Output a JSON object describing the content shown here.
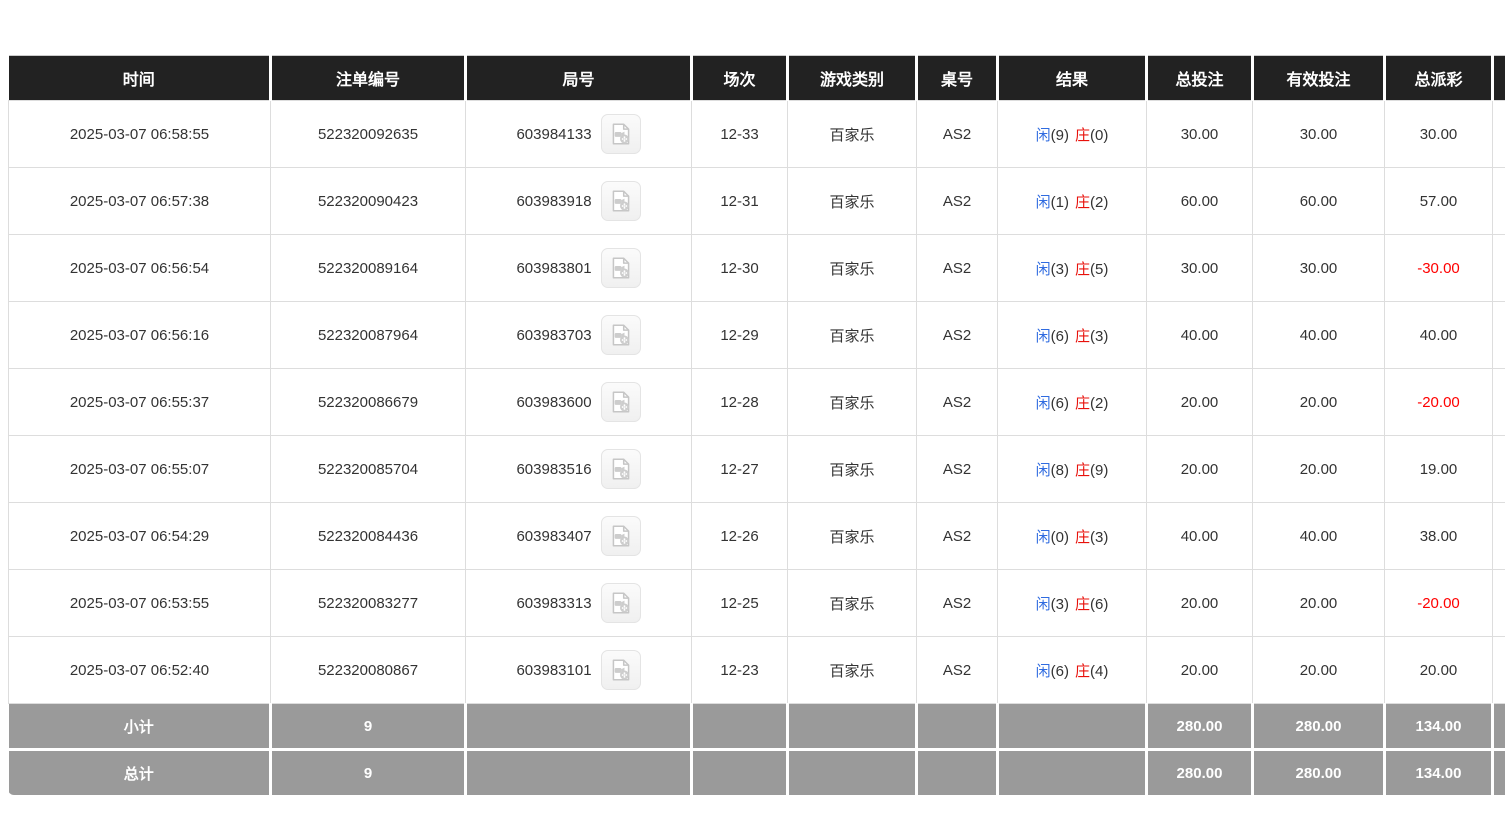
{
  "colors": {
    "header_bg": "#222222",
    "header_text": "#ffffff",
    "footer_bg": "#9a9a9a",
    "body_text": "#333333",
    "row_border": "#dddddd",
    "link_blue": "#1a73e8",
    "player_blue": "#2f6be0",
    "banker_red": "#e8110b",
    "negative_red": "#ff0000"
  },
  "icons": {
    "round_video": "video-file-icon"
  },
  "table": {
    "columns": [
      {
        "key": "time",
        "label": "时间"
      },
      {
        "key": "bet_id",
        "label": "注单编号"
      },
      {
        "key": "round",
        "label": "局号"
      },
      {
        "key": "session",
        "label": "场次"
      },
      {
        "key": "game_type",
        "label": "游戏类别"
      },
      {
        "key": "table_no",
        "label": "桌号"
      },
      {
        "key": "result",
        "label": "结果"
      },
      {
        "key": "total_bet",
        "label": "总投注"
      },
      {
        "key": "valid_bet",
        "label": "有效投注"
      },
      {
        "key": "payout",
        "label": "总派彩"
      },
      {
        "key": "extra",
        "label": ""
      }
    ],
    "rows": [
      {
        "time": "2025-03-07 06:58:55",
        "bet_id": "522320092635",
        "round_id": "603984133",
        "session": "12-33",
        "game_type": "百家乐",
        "table_no": "AS2",
        "result": {
          "player_label": "闲",
          "player_value": "(9)",
          "banker_label": "庄",
          "banker_value": "(0)"
        },
        "total_bet": "30.00",
        "valid_bet": "30.00",
        "payout": "30.00"
      },
      {
        "time": "2025-03-07 06:57:38",
        "bet_id": "522320090423",
        "round_id": "603983918",
        "session": "12-31",
        "game_type": "百家乐",
        "table_no": "AS2",
        "result": {
          "player_label": "闲",
          "player_value": "(1)",
          "banker_label": "庄",
          "banker_value": "(2)"
        },
        "total_bet": "60.00",
        "valid_bet": "60.00",
        "payout": "57.00"
      },
      {
        "time": "2025-03-07 06:56:54",
        "bet_id": "522320089164",
        "round_id": "603983801",
        "session": "12-30",
        "game_type": "百家乐",
        "table_no": "AS2",
        "result": {
          "player_label": "闲",
          "player_value": "(3)",
          "banker_label": "庄",
          "banker_value": "(5)"
        },
        "total_bet": "30.00",
        "valid_bet": "30.00",
        "payout": "-30.00"
      },
      {
        "time": "2025-03-07 06:56:16",
        "bet_id": "522320087964",
        "round_id": "603983703",
        "session": "12-29",
        "game_type": "百家乐",
        "table_no": "AS2",
        "result": {
          "player_label": "闲",
          "player_value": "(6)",
          "banker_label": "庄",
          "banker_value": "(3)"
        },
        "total_bet": "40.00",
        "valid_bet": "40.00",
        "payout": "40.00"
      },
      {
        "time": "2025-03-07 06:55:37",
        "bet_id": "522320086679",
        "round_id": "603983600",
        "session": "12-28",
        "game_type": "百家乐",
        "table_no": "AS2",
        "result": {
          "player_label": "闲",
          "player_value": "(6)",
          "banker_label": "庄",
          "banker_value": "(2)"
        },
        "total_bet": "20.00",
        "valid_bet": "20.00",
        "payout": "-20.00"
      },
      {
        "time": "2025-03-07 06:55:07",
        "bet_id": "522320085704",
        "round_id": "603983516",
        "session": "12-27",
        "game_type": "百家乐",
        "table_no": "AS2",
        "result": {
          "player_label": "闲",
          "player_value": "(8)",
          "banker_label": "庄",
          "banker_value": "(9)"
        },
        "total_bet": "20.00",
        "valid_bet": "20.00",
        "payout": "19.00"
      },
      {
        "time": "2025-03-07 06:54:29",
        "bet_id": "522320084436",
        "round_id": "603983407",
        "session": "12-26",
        "game_type": "百家乐",
        "table_no": "AS2",
        "result": {
          "player_label": "闲",
          "player_value": "(0)",
          "banker_label": "庄",
          "banker_value": "(3)"
        },
        "total_bet": "40.00",
        "valid_bet": "40.00",
        "payout": "38.00"
      },
      {
        "time": "2025-03-07 06:53:55",
        "bet_id": "522320083277",
        "round_id": "603983313",
        "session": "12-25",
        "game_type": "百家乐",
        "table_no": "AS2",
        "result": {
          "player_label": "闲",
          "player_value": "(3)",
          "banker_label": "庄",
          "banker_value": "(6)"
        },
        "total_bet": "20.00",
        "valid_bet": "20.00",
        "payout": "-20.00"
      },
      {
        "time": "2025-03-07 06:52:40",
        "bet_id": "522320080867",
        "round_id": "603983101",
        "session": "12-23",
        "game_type": "百家乐",
        "table_no": "AS2",
        "result": {
          "player_label": "闲",
          "player_value": "(6)",
          "banker_label": "庄",
          "banker_value": "(4)"
        },
        "total_bet": "20.00",
        "valid_bet": "20.00",
        "payout": "20.00"
      }
    ],
    "footer": [
      {
        "label": "小计",
        "count": "9",
        "total_bet": "280.00",
        "valid_bet": "280.00",
        "payout": "134.00"
      },
      {
        "label": "总计",
        "count": "9",
        "total_bet": "280.00",
        "valid_bet": "280.00",
        "payout": "134.00"
      }
    ]
  }
}
